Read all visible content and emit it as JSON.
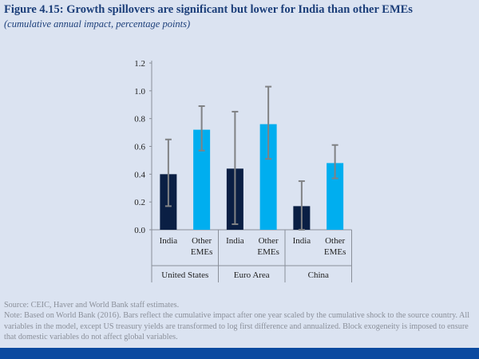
{
  "title": "Figure 4.15: Growth spillovers are significant but lower for India than other EMEs",
  "subtitle": "(cumulative annual impact, percentage points)",
  "colors": {
    "india": "#0a1f44",
    "other": "#00aeef",
    "error_bar": "#808285",
    "title": "#1c3f7a"
  },
  "chart_data": {
    "type": "bar",
    "title": "Figure 4.15: Growth spillovers are significant but lower for India than other EMEs",
    "subtitle": "(cumulative annual impact, percentage points)",
    "ylim": [
      0,
      1.2
    ],
    "yticks": [
      "0.0",
      "0.2",
      "0.4",
      "0.6",
      "0.8",
      "1.0",
      "1.2"
    ],
    "grid": false,
    "groups": [
      {
        "label": "United States",
        "bars": [
          {
            "label": "India",
            "value": 0.4,
            "low": 0.17,
            "high": 0.65,
            "color_key": "india"
          },
          {
            "label": "Other EMEs",
            "value": 0.72,
            "low": 0.57,
            "high": 0.89,
            "color_key": "other"
          }
        ]
      },
      {
        "label": "Euro Area",
        "bars": [
          {
            "label": "India",
            "value": 0.44,
            "low": 0.04,
            "high": 0.85,
            "color_key": "india"
          },
          {
            "label": "Other EMEs",
            "value": 0.76,
            "low": 0.51,
            "high": 1.03,
            "color_key": "other"
          }
        ]
      },
      {
        "label": "China",
        "bars": [
          {
            "label": "India",
            "value": 0.17,
            "low": 0.0,
            "high": 0.35,
            "color_key": "india"
          },
          {
            "label": "Other EMEs",
            "value": 0.48,
            "low": 0.37,
            "high": 0.61,
            "color_key": "other"
          }
        ]
      }
    ]
  },
  "footer": {
    "source": "Source: CEIC, Haver and World Bank staff estimates.",
    "note": "Note: Based on World Bank (2016). Bars reflect the cumulative impact after one year scaled by the cumulative shock to the source country. All variables in the model, except US treasury yields are transformed to log first difference and annualized. Block exogeneity is imposed to ensure that domestic variables do not affect global variables."
  }
}
